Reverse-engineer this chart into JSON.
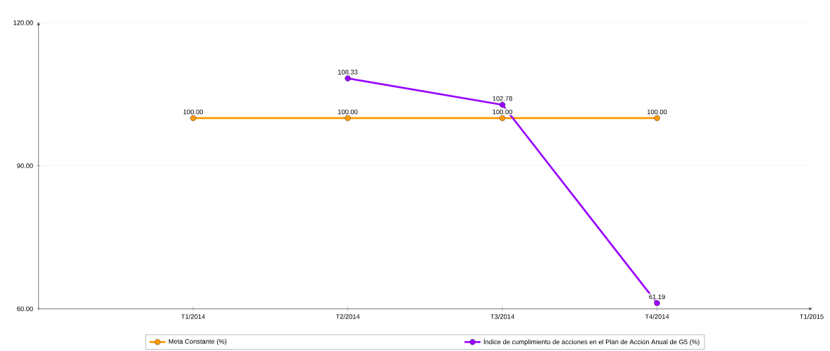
{
  "chart_data": {
    "type": "line",
    "categories": [
      null,
      "T1/2014",
      "T2/2014",
      "T3/2014",
      "T4/2014",
      "T1/2015"
    ],
    "series": [
      {
        "name": "Meta Constante (%)",
        "color": "#ff9900",
        "values": [
          null,
          100,
          100,
          100,
          100,
          null
        ],
        "value_labels": [
          null,
          "100.00",
          "100.00",
          "100.00",
          "100.00",
          null
        ]
      },
      {
        "name": "Índice de cumplimiento de acciones en el Plan de Acción Anual de G5 (%)",
        "color": "#9900ff",
        "values": [
          null,
          null,
          108.33,
          102.78,
          61.19,
          null
        ],
        "value_labels": [
          null,
          null,
          "108.33",
          "102.78",
          "61.19",
          null
        ]
      }
    ],
    "ylim": [
      60,
      120
    ],
    "yticks": [
      {
        "value": 60,
        "label": "60.00"
      },
      {
        "value": 90,
        "label": "90.00"
      },
      {
        "value": 120,
        "label": "120.00"
      }
    ],
    "grid": "y",
    "legend": "bottom",
    "marker": "circle",
    "line_style": "solid"
  }
}
